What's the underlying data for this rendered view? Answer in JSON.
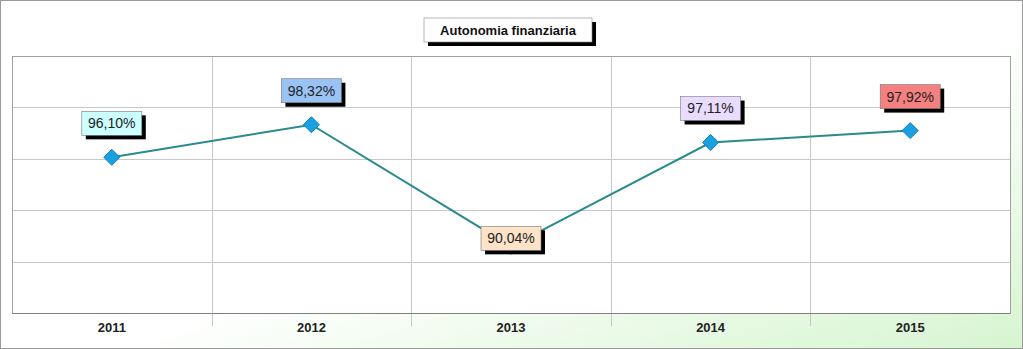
{
  "chart_data": {
    "type": "line",
    "title": "Autonomia finanziaria",
    "categories": [
      "2011",
      "2012",
      "2013",
      "2014",
      "2015"
    ],
    "values": [
      96.1,
      98.32,
      90.04,
      97.11,
      97.92
    ],
    "value_labels": [
      "96,10%",
      "98,32%",
      "90,04%",
      "97,11%",
      "97,92%"
    ],
    "ylim": [
      85.5,
      103
    ],
    "yticks": [
      85.5,
      89,
      92.5,
      96,
      99.5,
      103
    ],
    "grid": true,
    "data_labels": true,
    "tick_labels": "x",
    "marker": "diamond"
  }
}
